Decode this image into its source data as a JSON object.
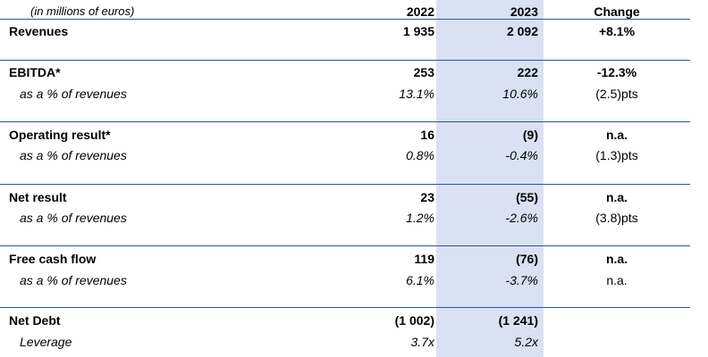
{
  "header": {
    "unit_note": "(in millions of euros)",
    "col_2022": "2022",
    "col_2023": "2023",
    "col_change": "Change"
  },
  "revenues": {
    "label": "Revenues",
    "v2022": "1 935",
    "v2023": "2 092",
    "change": "+8.1%"
  },
  "ebitda": {
    "label": "EBITDA*",
    "v2022": "253",
    "v2023": "222",
    "change": "-12.3%",
    "sub_label": "as a % of revenues",
    "sub_2022": "13.1%",
    "sub_2023": "10.6%",
    "sub_change": "(2.5)pts"
  },
  "operating": {
    "label": "Operating result*",
    "v2022": "16",
    "v2023": "(9)",
    "change": "n.a.",
    "sub_label": "as a % of revenues",
    "sub_2022": "0.8%",
    "sub_2023": "-0.4%",
    "sub_change": "(1.3)pts"
  },
  "net_result": {
    "label": "Net result",
    "v2022": "23",
    "v2023": "(55)",
    "change": "n.a.",
    "sub_label": "as a % of revenues",
    "sub_2022": "1.2%",
    "sub_2023": "-2.6%",
    "sub_change": "(3.8)pts"
  },
  "fcf": {
    "label": "Free cash flow",
    "v2022": "119",
    "v2023": "(76)",
    "change": "n.a.",
    "sub_label": "as a % of revenues",
    "sub_2022": "6.1%",
    "sub_2023": "-3.7%",
    "sub_change": "n.a."
  },
  "net_debt": {
    "label": "Net Debt",
    "v2022": "(1 002)",
    "v2023": "(1 241)",
    "change": "",
    "sub_label": "Leverage",
    "sub_2022": "3.7x",
    "sub_2023": "5.2x",
    "sub_change": ""
  },
  "colors": {
    "highlight": "#d9e1f2",
    "rule": "#2f5597"
  }
}
